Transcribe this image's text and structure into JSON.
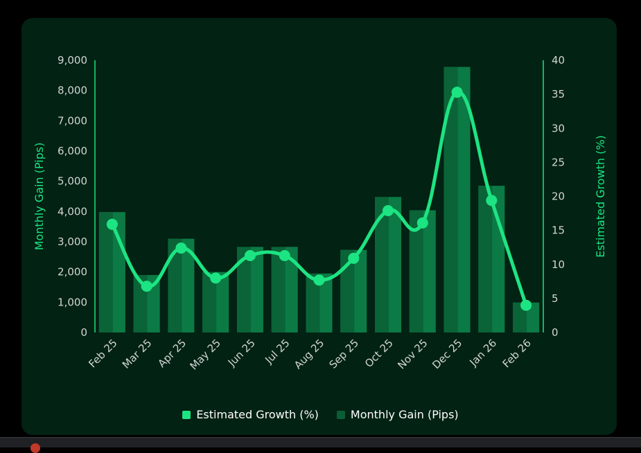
{
  "chart_data": {
    "type": "bar",
    "categories": [
      "Feb 25",
      "Mar 25",
      "Apr 25",
      "May 25",
      "Jun 25",
      "Jul 25",
      "Aug 25",
      "Sep 25",
      "Oct 25",
      "Nov 25",
      "Dec 25",
      "Jan 26",
      "Feb 26"
    ],
    "series": [
      {
        "name": "Estimated Growth (%)",
        "type": "line",
        "axis": "right",
        "color": "#1de482",
        "values": [
          15.9,
          6.8,
          12.4,
          8.0,
          11.3,
          11.3,
          7.7,
          10.9,
          17.9,
          16.1,
          35.3,
          19.4,
          4.0
        ]
      },
      {
        "name": "Monthly Gain (Pips)",
        "type": "bar",
        "axis": "left",
        "color": "#0a5e36",
        "values": [
          3980,
          1900,
          3100,
          2000,
          2830,
          2830,
          1950,
          2730,
          4480,
          4040,
          8780,
          4850,
          990
        ]
      }
    ],
    "y_left": {
      "label": "Monthly Gain (Pips)",
      "lim": [
        0,
        9000
      ],
      "ticks": [
        "0",
        "1,000",
        "2,000",
        "3,000",
        "4,000",
        "5,000",
        "6,000",
        "7,000",
        "8,000",
        "9,000"
      ]
    },
    "y_right": {
      "label": "Estimated Growth (%)",
      "lim": [
        0,
        40
      ],
      "ticks": [
        "0",
        "5",
        "10",
        "15",
        "20",
        "25",
        "30",
        "35",
        "40"
      ]
    },
    "grid": false,
    "legend_position": "bottom"
  }
}
